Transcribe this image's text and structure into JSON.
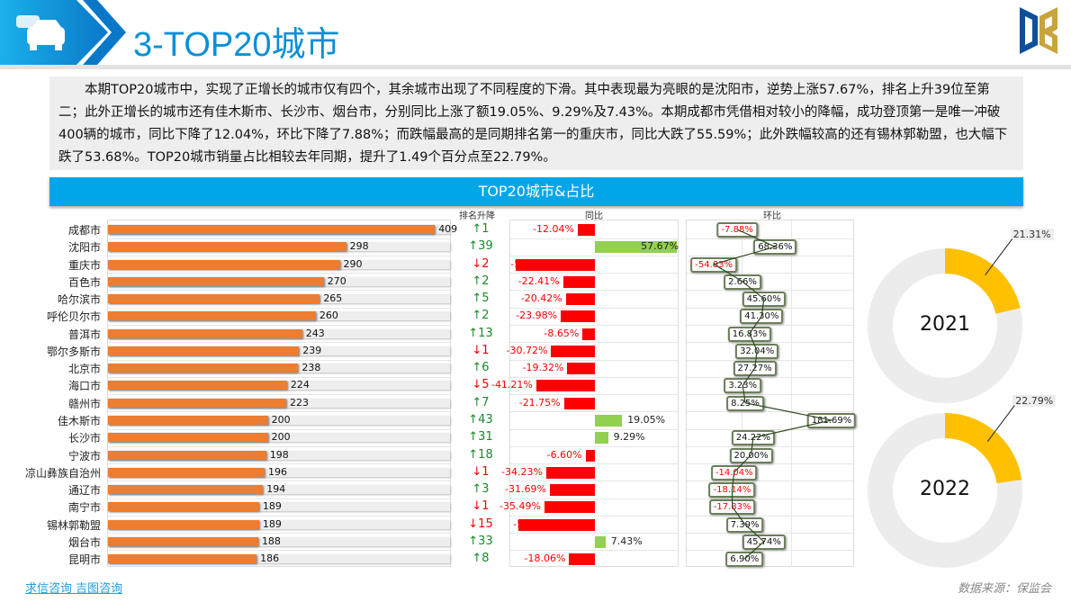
{
  "header": {
    "title": "3-TOP20城市",
    "icon": "car-icon",
    "logo": "DB"
  },
  "summary": "本期TOP20城市中，实现了正增长的城市仅有四个，其余城市出现了不同程度的下滑。其中表现最为亮眼的是沈阳市，逆势上涨57.67%，排名上升39位至第二；此外正增长的城市还有佳木斯市、长沙市、烟台市，分别同比上涨了额19.05%、9.29%及7.43%。本期成都市凭借相对较小的降幅，成功登顶第一是唯一冲破400辆的城市，同比下降了12.04%，环比下降了7.88%；而跌幅最高的是同期排名第一的重庆市，同比大跌了55.59%；此外跌幅较高的还有锡林郭勒盟，也大幅下跌了53.68%。TOP20城市销量占比相较去年同期，提升了1.49个百分点至22.79%。",
  "band_title": "TOP20城市&占比",
  "col_headers": {
    "rank": "排名升降",
    "yoy": "同比",
    "mom": "环比"
  },
  "colors": {
    "bar": "#ed7d31",
    "up": "#1a8a2a",
    "down": "#ff0000",
    "pos_bar": "#92d050",
    "neg_bar": "#ff0000",
    "donut": "#ffc000",
    "donut_bg": "#ececec",
    "band": "#00a6e8"
  },
  "chart_data": {
    "type": "table",
    "cities": [
      "成都市",
      "沈阳市",
      "重庆市",
      "百色市",
      "哈尔滨市",
      "呼伦贝尔市",
      "普洱市",
      "鄂尔多斯市",
      "北京市",
      "海口市",
      "赣州市",
      "佳木斯市",
      "长沙市",
      "宁波市",
      "凉山彝族自治州",
      "通辽市",
      "南宁市",
      "锡林郭勒盟",
      "烟台市",
      "昆明市"
    ],
    "sales": [
      409,
      298,
      290,
      270,
      265,
      260,
      243,
      239,
      238,
      224,
      223,
      200,
      200,
      198,
      196,
      194,
      189,
      189,
      188,
      186
    ],
    "rank_change": [
      "↑1",
      "↑39",
      "↓2",
      "↑2",
      "↑5",
      "↑2",
      "↑13",
      "↓1",
      "↑6",
      "↓5",
      "↑7",
      "↑43",
      "↑31",
      "↑18",
      "↓1",
      "↑3",
      "↓1",
      "↓15",
      "↑33",
      "↑8"
    ],
    "yoy": [
      -12.04,
      57.67,
      -55.59,
      -22.41,
      -20.42,
      -23.98,
      -8.65,
      -30.72,
      -19.32,
      -41.21,
      -21.75,
      19.05,
      9.29,
      -6.6,
      -34.23,
      -31.69,
      -35.49,
      -53.68,
      7.43,
      -18.06
    ],
    "yoy_labels": [
      "-12.04%",
      "57.67%",
      "-55.59%",
      "-22.41%",
      "-20.42%",
      "-23.98%",
      "-8.65%",
      "-30.72%",
      "-19.32%",
      "-41.21%",
      "-21.75%",
      "19.05%",
      "9.29%",
      "-6.60%",
      "-34.23%",
      "-31.69%",
      "-35.49%",
      "-53.68%",
      "7.43%",
      "-18.06%"
    ],
    "mom": [
      -7.88,
      68.36,
      -54.83,
      2.66,
      45.6,
      41.3,
      16.83,
      32.04,
      27.27,
      3.23,
      8.25,
      181.69,
      24.22,
      20.0,
      -14.04,
      -18.14,
      -17.83,
      7.39,
      45.74,
      6.9
    ],
    "mom_labels": [
      "-7.88%",
      "68.36%",
      "-54.83%",
      "2.66%",
      "45.60%",
      "41.30%",
      "16.83%",
      "32.04%",
      "27.27%",
      "3.23%",
      "8.25%",
      "181.69%",
      "24.22%",
      "20.00%",
      "-14.04%",
      "-18.14%",
      "-17.83%",
      "7.39%",
      "45.74%",
      "6.90%"
    ],
    "donuts": [
      {
        "year": "2021",
        "share": 21.31,
        "label": "21.31%"
      },
      {
        "year": "2022",
        "share": 22.79,
        "label": "22.79%"
      }
    ]
  },
  "footer": {
    "source_links": "求信咨询  吉图咨询",
    "data_source": "数据来源：保监会"
  }
}
